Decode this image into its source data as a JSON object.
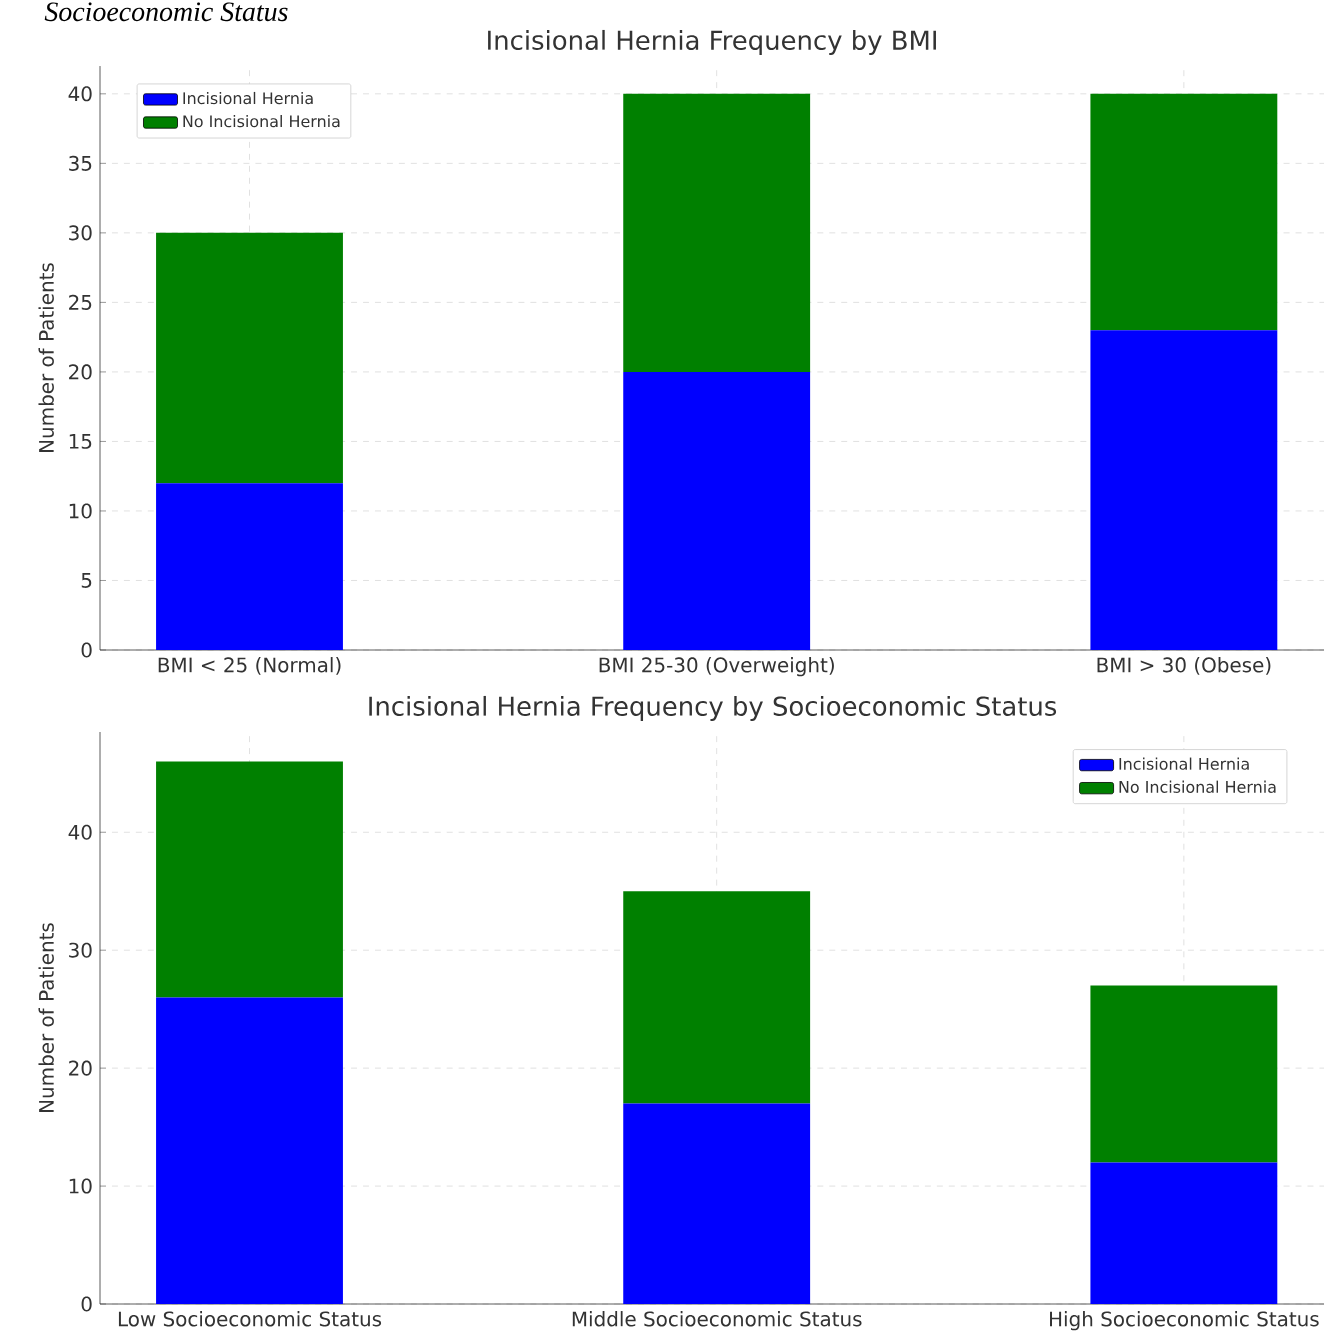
{
  "chart_data": [
    {
      "type": "bar",
      "title": "Incisional Hernia Frequency by BMI",
      "ylabel": "Number of Patients",
      "annotations": [
        "Socioeconomic Status"
      ],
      "categories": [
        "BMI < 25 (Normal)",
        "BMI 25-30 (Overweight)",
        "BMI > 30 (Obese)"
      ],
      "stacked": true,
      "ylim": [
        0,
        42
      ],
      "yticks": [
        0,
        5,
        10,
        15,
        20,
        25,
        30,
        35,
        40
      ],
      "grid": true,
      "legend": "top left",
      "series": [
        {
          "name": "Incisional Hernia",
          "color": "#0000ff",
          "values": [
            12,
            20,
            23
          ]
        },
        {
          "name": "No Incisional Hernia",
          "color": "#008000",
          "values": [
            18,
            20,
            17
          ]
        }
      ]
    },
    {
      "type": "bar",
      "title": "Incisional Hernia Frequency by Socioeconomic Status",
      "ylabel": "Number of Patients",
      "categories": [
        "Low Socioeconomic Status",
        "Middle Socioeconomic Status",
        "High Socioeconomic Status"
      ],
      "stacked": true,
      "ylim": [
        0,
        48.5
      ],
      "yticks": [
        0,
        10,
        20,
        30,
        40
      ],
      "grid": true,
      "legend": "top right",
      "series": [
        {
          "name": "Incisional Hernia",
          "color": "#0000ff",
          "values": [
            26,
            17,
            12
          ]
        },
        {
          "name": "No Incisional Hernia",
          "color": "#008000",
          "values": [
            20,
            18,
            15
          ]
        }
      ]
    }
  ]
}
